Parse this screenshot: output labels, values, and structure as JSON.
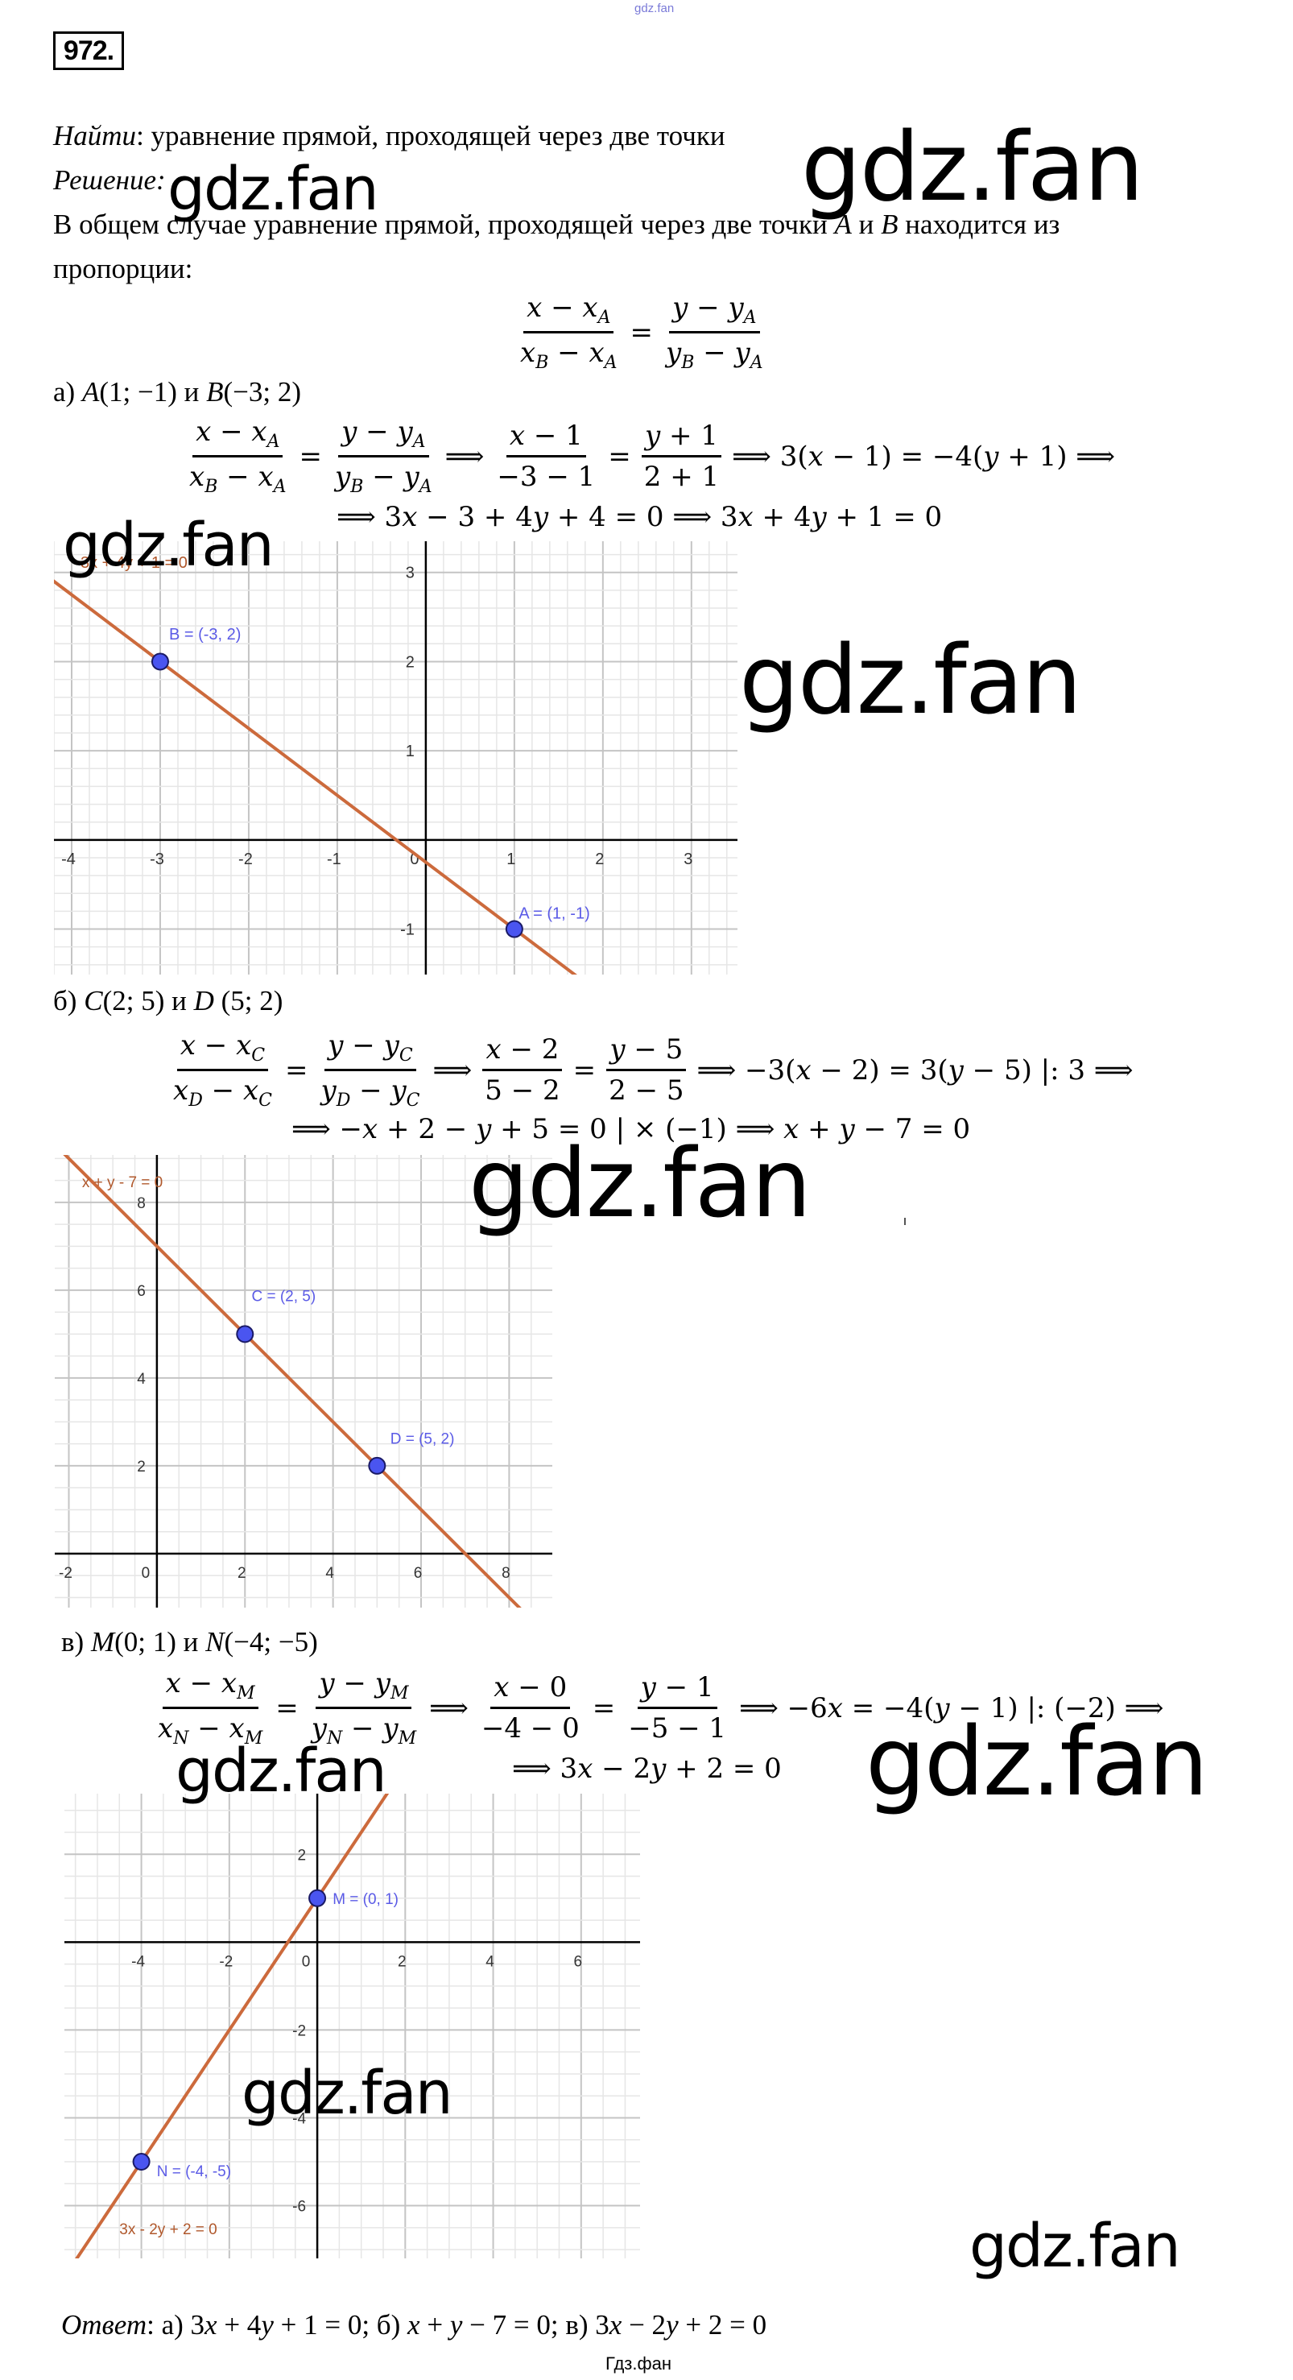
{
  "header": {
    "top_watermark": "gdz.fan",
    "problem_number": "972."
  },
  "intro": {
    "find_label": "Найти",
    "find_text": ": уравнение прямой, проходящей через две точки",
    "solution_label": "Решение:",
    "general_text": "В общем случае уравнение прямой, проходящей через две точки A и B находится из",
    "general_text_2": "пропорции:",
    "general_formula": [
      {
        "frac": [
          [
            "x − x",
            {
              "sub": "A"
            }
          ],
          [
            "x",
            {
              "sub": "B"
            },
            " − x",
            {
              "sub": "A"
            }
          ]
        ]
      },
      "=",
      {
        "frac": [
          [
            "y − y",
            {
              "sub": "A"
            }
          ],
          [
            "y",
            {
              "sub": "B"
            },
            " − y",
            {
              "sub": "A"
            }
          ]
        ]
      }
    ]
  },
  "part_a": {
    "heading": "а) A(1; −1) и B(−3; 2)",
    "formula_1": [
      {
        "frac": [
          [
            "x − x",
            {
              "sub": "A"
            }
          ],
          [
            "x",
            {
              "sub": "B"
            },
            " − x",
            {
              "sub": "A"
            }
          ]
        ]
      },
      "=",
      {
        "frac": [
          [
            "y − y",
            {
              "sub": "A"
            }
          ],
          [
            "y",
            {
              "sub": "B"
            },
            " − y",
            {
              "sub": "A"
            }
          ]
        ]
      },
      "⟹",
      {
        "frac": [
          [
            "x − 1"
          ],
          [
            "−3 − 1"
          ]
        ]
      },
      "=",
      {
        "frac": [
          [
            "y + 1"
          ],
          [
            "2 + 1"
          ]
        ]
      },
      "⟹ 3(x − 1) = −4(y + 1) ⟹"
    ],
    "formula_2": "⟹ 3x − 3 + 4y + 4 = 0 ⟹ 3x + 4y + 1 = 0"
  },
  "part_b": {
    "heading": "б) C(2; 5) и D (5; 2)",
    "formula_1": [
      {
        "frac": [
          [
            "x − x",
            {
              "sub": "C"
            }
          ],
          [
            "x",
            {
              "sub": "D"
            },
            " − x",
            {
              "sub": "C"
            }
          ]
        ]
      },
      "=",
      {
        "frac": [
          [
            "y − y",
            {
              "sub": "C"
            }
          ],
          [
            "y",
            {
              "sub": "D"
            },
            " − y",
            {
              "sub": "C"
            }
          ]
        ]
      },
      "⟹",
      {
        "frac": [
          [
            "x − 2"
          ],
          [
            "5 − 2"
          ]
        ]
      },
      "=",
      {
        "frac": [
          [
            "y − 5"
          ],
          [
            "2 − 5"
          ]
        ]
      },
      "⟹ −3(x − 2) = 3(y − 5)  |: 3 ⟹"
    ],
    "formula_2": "⟹ −x + 2 − y + 5 = 0  | × (−1)  ⟹ x + y − 7 = 0"
  },
  "part_c": {
    "heading": "в) M(0; 1) и N(−4; −5)",
    "formula_1": [
      {
        "frac": [
          [
            "x − x",
            {
              "sub": "M"
            }
          ],
          [
            "x",
            {
              "sub": "N"
            },
            " − x",
            {
              "sub": "M"
            }
          ]
        ]
      },
      "=",
      {
        "frac": [
          [
            "y − y",
            {
              "sub": "M"
            }
          ],
          [
            "y",
            {
              "sub": "N"
            },
            " − y",
            {
              "sub": "M"
            }
          ]
        ]
      },
      "⟹",
      {
        "frac": [
          [
            "x − 0"
          ],
          [
            "−4 − 0"
          ]
        ]
      },
      "=",
      {
        "frac": [
          [
            "y − 1"
          ],
          [
            "−5 − 1"
          ]
        ]
      },
      "⟹ −6x = −4(y − 1)  |: (−2) ⟹"
    ],
    "formula_2": "⟹ 3x − 2y + 2 = 0"
  },
  "answer": {
    "label": "Ответ",
    "text": ": а) 3x + 4y + 1 = 0; б) x + y − 7 = 0; в) 3x − 2y + 2 = 0"
  },
  "footer": "Гдз.фан",
  "watermark": "gdz.fan",
  "colors": {
    "line": "#cc6a3c",
    "line_label": "#b0582c",
    "point_fill": "#4a55f0",
    "point_stroke": "#1a1a66",
    "point_label": "#5a5ae6",
    "grid_major": "#c4c4c4",
    "grid_minor": "#e6e6e6",
    "axis": "#000000"
  },
  "chart_data": [
    {
      "type": "line",
      "equation_label": "3x + 4y + 1 = 0",
      "xlim": [
        -4.2,
        3.52
      ],
      "ylim": [
        -1.51,
        3.35
      ],
      "x_ticks": [
        -4,
        -3,
        -2,
        -1,
        0,
        1,
        2,
        3
      ],
      "y_ticks": [
        -1,
        1,
        2,
        3
      ],
      "major_step": 1,
      "minor_step": 0.2,
      "grid": true,
      "points": [
        {
          "label": "B = (-3, 2)",
          "x": -3,
          "y": 2
        },
        {
          "label": "A = (1, -1)",
          "x": 1,
          "y": -1
        }
      ]
    },
    {
      "type": "line",
      "equation_label": "x + y - 7 = 0",
      "xlim": [
        -2.32,
        8.98
      ],
      "ylim": [
        -1.23,
        9.08
      ],
      "x_ticks": [
        -2,
        0,
        2,
        4,
        6,
        8
      ],
      "y_ticks": [
        2,
        4,
        6,
        8
      ],
      "major_step": 2,
      "minor_step": 0.5,
      "grid": true,
      "points": [
        {
          "label": "C = (2, 5)",
          "x": 2,
          "y": 5
        },
        {
          "label": "D = (5, 2)",
          "x": 5,
          "y": 2
        }
      ]
    },
    {
      "type": "line",
      "equation_label": "3x - 2y + 2 = 0",
      "xlim": [
        -5.75,
        7.34
      ],
      "ylim": [
        -7.2,
        3.38
      ],
      "x_ticks": [
        -4,
        -2,
        0,
        2,
        4,
        6
      ],
      "y_ticks": [
        2,
        -2,
        -4,
        -6
      ],
      "major_step": 2,
      "minor_step": 0.5,
      "grid": true,
      "points": [
        {
          "label": "M = (0, 1)",
          "x": 0,
          "y": 1
        },
        {
          "label": "N = (-4, -5)",
          "x": -4,
          "y": -5
        }
      ]
    }
  ]
}
